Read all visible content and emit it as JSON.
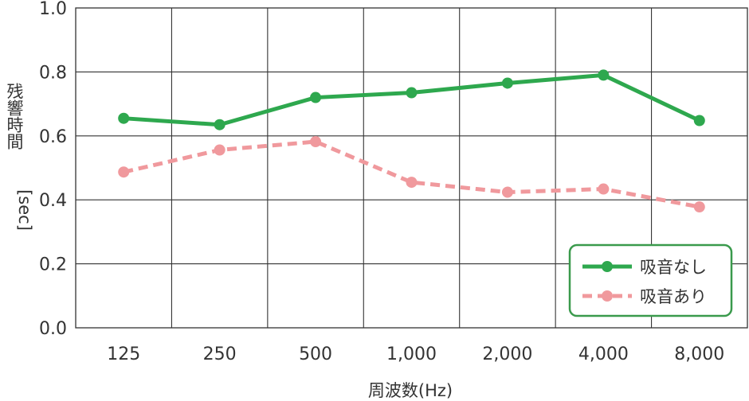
{
  "chart_data": {
    "type": "line",
    "categories": [
      "125",
      "250",
      "500",
      "1,000",
      "2,000",
      "4,000",
      "8,000"
    ],
    "series": [
      {
        "name": "吸音なし",
        "color": "#2ea84e",
        "style": "solid",
        "values": [
          0.655,
          0.635,
          0.72,
          0.735,
          0.765,
          0.79,
          0.648
        ]
      },
      {
        "name": "吸音あり",
        "color": "#f0999d",
        "style": "dashed",
        "values": [
          0.487,
          0.556,
          0.582,
          0.455,
          0.424,
          0.434,
          0.378
        ]
      }
    ],
    "xlabel": "周波数(Hz)",
    "ylabel_main": "残響時間",
    "ylabel_unit": "[sec]",
    "ylim": [
      0.0,
      1.0
    ],
    "yticks": [
      "0.0",
      "0.2",
      "0.4",
      "0.6",
      "0.8",
      "1.0"
    ],
    "grid": true,
    "legend_position": "bottom-right",
    "legend_border_color": "#3a9a4c"
  }
}
